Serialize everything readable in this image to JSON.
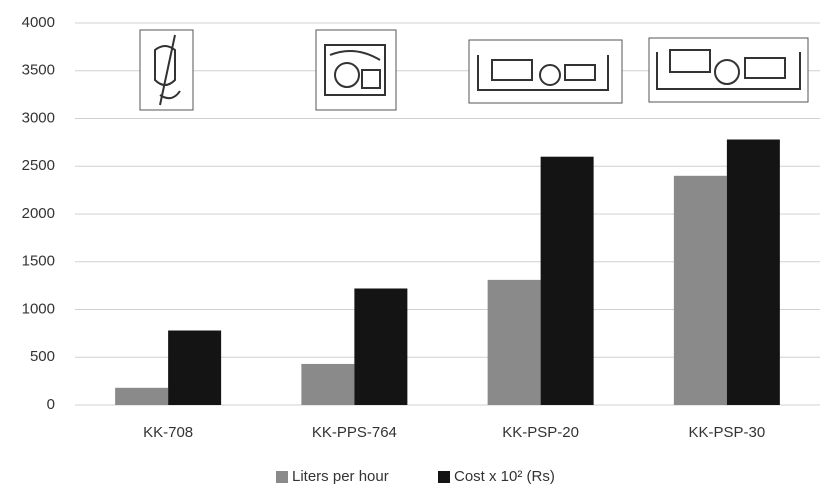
{
  "chart_data": {
    "type": "bar",
    "categories": [
      "KK-708",
      "KK-PPS-764",
      "KK-PSP-20",
      "KK-PSP-30"
    ],
    "series": [
      {
        "name": "Liters per hour",
        "color": "#8a8a8a",
        "values": [
          180,
          430,
          1310,
          2400
        ]
      },
      {
        "name": "Cost x 10² (Rs)",
        "color": "#141414",
        "values": [
          780,
          1220,
          2600,
          2780
        ]
      }
    ],
    "ylim": [
      0,
      4000
    ],
    "yticks": [
      0,
      500,
      1000,
      1500,
      2000,
      2500,
      3000,
      3500,
      4000
    ],
    "grid": true,
    "legend": "bottom"
  }
}
